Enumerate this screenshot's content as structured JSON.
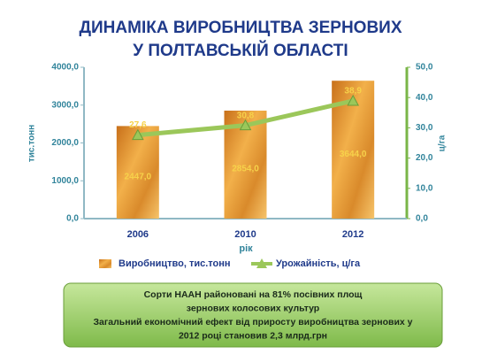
{
  "chart_data": {
    "type": "bar",
    "title": [
      "ДИНАМІКА ВИРОБНИЦТВА ЗЕРНОВИХ",
      "У ПОЛТАВСЬКІЙ ОБЛАСТІ"
    ],
    "x_label": "рік",
    "y_label": "тис.тонн",
    "y2_label": "ц/га",
    "categories": [
      "2006",
      "2010",
      "2012"
    ],
    "series": [
      {
        "name": "Виробництво,  тис.тонн",
        "type": "bar",
        "color": "#e0902a",
        "values": [
          2447,
          2854,
          3644
        ],
        "value_labels": [
          "2447,0",
          "2854,0",
          "3644,0"
        ]
      },
      {
        "name": "Урожайність,  ц/га",
        "type": "line",
        "axis": "y2",
        "color": "#9bc75a",
        "values": [
          27.6,
          30.8,
          38.9
        ],
        "value_labels": [
          "27,6",
          "30,8",
          "38,9"
        ]
      }
    ],
    "ylim": [
      0,
      4000
    ],
    "yticks": [
      {
        "value": 0,
        "label": "0,0"
      },
      {
        "value": 1000,
        "label": "1000,0"
      },
      {
        "value": 2000,
        "label": "2000,0"
      },
      {
        "value": 3000,
        "label": "3000,0"
      },
      {
        "value": 4000,
        "label": "4000,0"
      }
    ],
    "y2lim": [
      0,
      50
    ],
    "y2ticks": [
      {
        "value": 0,
        "label": "0,0"
      },
      {
        "value": 10,
        "label": "10,0"
      },
      {
        "value": 20,
        "label": "20,0"
      },
      {
        "value": 30,
        "label": "30,0"
      },
      {
        "value": 40,
        "label": "40,0"
      },
      {
        "value": 50,
        "label": "50,0"
      }
    ],
    "legend": "bottom"
  },
  "note": [
    "Сорти НААН районовані  на 81% посівних  площ",
    "зернових колосових культур",
    "Загальний економічний ефект від приросту виробництва зернових у",
    "2012 році становив 2,3 млрд.грн"
  ]
}
